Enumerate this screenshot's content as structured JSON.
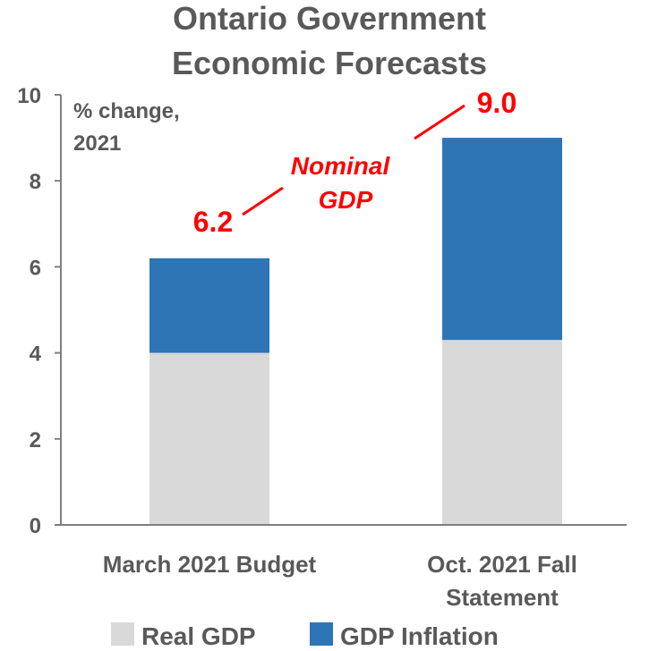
{
  "chart_data": {
    "type": "bar",
    "stacked": true,
    "title": [
      "Ontario Government",
      "Economic Forecasts"
    ],
    "unit_label": [
      "% change,",
      "2021"
    ],
    "categories": [
      [
        "March 2021 Budget"
      ],
      [
        "Oct. 2021 Fall",
        "Statement"
      ]
    ],
    "series": [
      {
        "name": "Real GDP",
        "color": "#d9d9d9",
        "values": [
          4.0,
          4.3
        ]
      },
      {
        "name": "GDP Inflation",
        "color": "#2e75b6",
        "values": [
          2.2,
          4.7
        ]
      }
    ],
    "totals": [
      "6.2",
      "9.0"
    ],
    "annotation": [
      "Nominal",
      "GDP"
    ],
    "annotation_color": "#ff0000",
    "ylim": [
      0,
      10
    ],
    "yticks": [
      "0",
      "2",
      "4",
      "6",
      "8",
      "10"
    ],
    "grid": false,
    "legend_position": "bottom"
  }
}
